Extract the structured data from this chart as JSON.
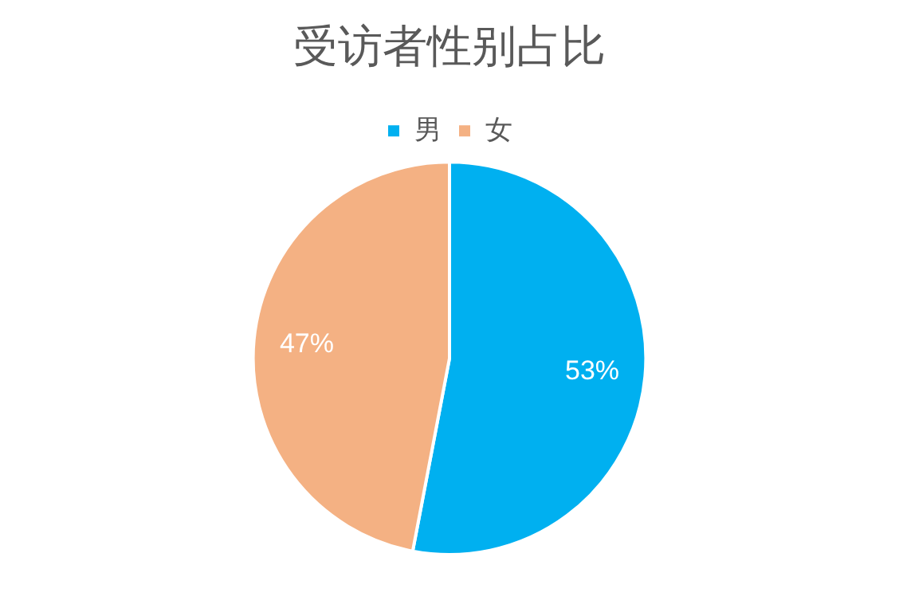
{
  "chart_data": {
    "type": "pie",
    "title": "受访者性别占比",
    "categories": [
      "男",
      "女"
    ],
    "values": [
      53,
      47
    ],
    "colors": [
      "#00b0f0",
      "#f4b183"
    ],
    "value_labels": [
      "53%",
      "47%"
    ],
    "legend": "top"
  }
}
